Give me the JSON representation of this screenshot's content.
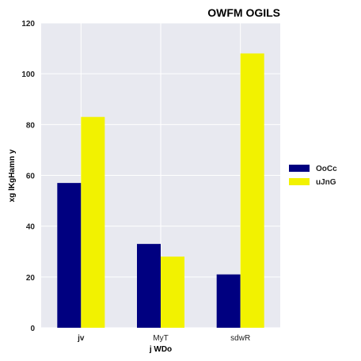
{
  "chart_data": {
    "type": "bar",
    "title": "OWFM OGILS",
    "xlabel": "j WDo",
    "ylabel": "xg   lKgHamn y",
    "categories": [
      "jv",
      "MyT",
      "sdwR"
    ],
    "series": [
      {
        "name": "OoCc",
        "values": [
          57,
          33,
          21
        ],
        "color": "#000080"
      },
      {
        "name": "uJnG",
        "values": [
          83,
          28,
          108
        ],
        "color": "#f2f200"
      }
    ],
    "ylim": [
      0,
      120
    ],
    "yticks": [
      0,
      20,
      40,
      60,
      80,
      100,
      120
    ],
    "grid": true,
    "legend_position": "right",
    "background": "#e8e9f0"
  }
}
